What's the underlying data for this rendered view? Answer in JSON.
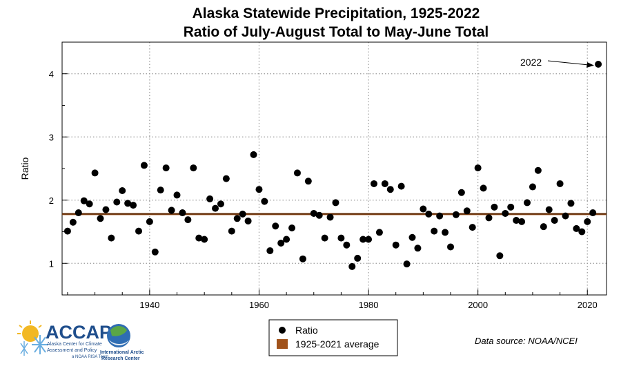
{
  "chart_data": {
    "type": "scatter",
    "title": "Alaska Statewide Precipitation, 1925-2022",
    "subtitle": "Ratio of July-August Total to May-June Total",
    "xlabel": "",
    "ylabel": "Ratio",
    "xlim": [
      1924,
      2023.5
    ],
    "ylim": [
      0.5,
      4.5
    ],
    "xticks": [
      1940,
      1960,
      1980,
      2000,
      2020
    ],
    "yticks": [
      1,
      2,
      3,
      4
    ],
    "grid": true,
    "legend_position": "bottom-center",
    "series": [
      {
        "name": "Ratio",
        "color": "#000000",
        "x": [
          1925,
          1926,
          1927,
          1928,
          1929,
          1930,
          1931,
          1932,
          1933,
          1934,
          1935,
          1936,
          1937,
          1938,
          1939,
          1940,
          1941,
          1942,
          1943,
          1944,
          1945,
          1946,
          1947,
          1948,
          1949,
          1950,
          1951,
          1952,
          1953,
          1954,
          1955,
          1956,
          1957,
          1958,
          1959,
          1960,
          1961,
          1962,
          1963,
          1964,
          1965,
          1966,
          1967,
          1968,
          1969,
          1970,
          1971,
          1972,
          1973,
          1974,
          1975,
          1976,
          1977,
          1978,
          1979,
          1980,
          1981,
          1982,
          1983,
          1984,
          1985,
          1986,
          1987,
          1988,
          1989,
          1990,
          1991,
          1992,
          1993,
          1994,
          1995,
          1996,
          1997,
          1998,
          1999,
          2000,
          2001,
          2002,
          2003,
          2004,
          2005,
          2006,
          2007,
          2008,
          2009,
          2010,
          2011,
          2012,
          2013,
          2014,
          2015,
          2016,
          2017,
          2018,
          2019,
          2020,
          2021,
          2022
        ],
        "y": [
          1.51,
          1.65,
          1.8,
          1.99,
          1.94,
          2.43,
          1.71,
          1.85,
          1.4,
          1.97,
          2.15,
          1.95,
          1.92,
          1.51,
          2.55,
          1.66,
          1.18,
          2.16,
          2.51,
          1.84,
          2.08,
          1.8,
          1.69,
          2.51,
          1.4,
          1.38,
          2.02,
          1.87,
          1.94,
          2.34,
          1.51,
          1.71,
          1.78,
          1.67,
          2.72,
          2.17,
          1.98,
          1.2,
          1.59,
          1.32,
          1.38,
          1.56,
          2.43,
          1.07,
          2.3,
          1.79,
          1.76,
          1.4,
          1.73,
          1.96,
          1.4,
          1.29,
          0.95,
          1.08,
          1.38,
          1.38,
          2.26,
          1.49,
          2.26,
          2.17,
          1.29,
          2.22,
          0.99,
          1.41,
          1.24,
          1.86,
          1.78,
          1.51,
          1.75,
          1.49,
          1.26,
          1.77,
          2.12,
          1.83,
          1.57,
          2.51,
          2.19,
          1.72,
          1.89,
          1.12,
          1.79,
          1.89,
          1.68,
          1.66,
          1.96,
          2.21,
          2.47,
          1.58,
          1.85,
          1.68,
          2.26,
          1.75,
          1.95,
          1.55,
          1.5,
          1.66,
          1.8,
          4.15
        ]
      },
      {
        "name": "1925-2021 average",
        "color": "#a0521a",
        "value": 1.78
      }
    ],
    "annotation": {
      "text": "2022",
      "x": 2022,
      "y": 4.15
    }
  },
  "source_text": "Data source: NOAA/NCEI",
  "logos": {
    "accap_name": "ACCAP",
    "accap_line1": "Alaska Center for Climate",
    "accap_line2": "Assessment and Policy",
    "accap_line3": "a NOAA RISA Team",
    "iarc_line1": "International Arctic",
    "iarc_line2": "Research Center"
  }
}
